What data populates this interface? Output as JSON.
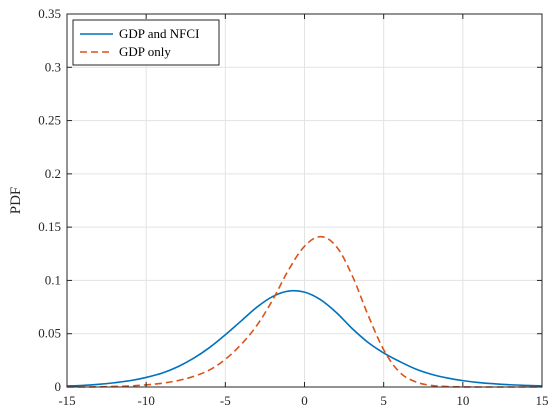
{
  "chart_data": {
    "type": "line",
    "title": "",
    "xlabel": "",
    "ylabel": "PDF",
    "xlim": [
      -15,
      15
    ],
    "ylim": [
      0,
      0.35
    ],
    "xticks": [
      -15,
      -10,
      -5,
      0,
      5,
      10,
      15
    ],
    "xtick_labels": [
      "-15",
      "-10",
      "-5",
      "0",
      "5",
      "10",
      "15"
    ],
    "yticks": [
      0,
      0.05,
      0.1,
      0.15,
      0.2,
      0.25,
      0.3,
      0.35
    ],
    "ytick_labels": [
      "0",
      "0.05",
      "0.1",
      "0.15",
      "0.2",
      "0.25",
      "0.3",
      "0.35"
    ],
    "grid": true,
    "legend_position": "top-left",
    "series": [
      {
        "name": "GDP and NFCI",
        "color": "#0072BD",
        "line_style": "solid",
        "x": [
          -15,
          -14,
          -13,
          -12,
          -11,
          -10,
          -9,
          -8,
          -7,
          -6,
          -5,
          -4,
          -3,
          -2,
          -1,
          0,
          1,
          2,
          3,
          4,
          5,
          6,
          7,
          8,
          9,
          10,
          11,
          12,
          13,
          14,
          15
        ],
        "y": [
          0.001,
          0.0015,
          0.0025,
          0.004,
          0.006,
          0.009,
          0.013,
          0.019,
          0.027,
          0.037,
          0.049,
          0.062,
          0.075,
          0.085,
          0.09,
          0.089,
          0.082,
          0.07,
          0.055,
          0.042,
          0.032,
          0.024,
          0.017,
          0.012,
          0.0085,
          0.006,
          0.0042,
          0.003,
          0.0021,
          0.0015,
          0.001
        ]
      },
      {
        "name": "GDP only",
        "color": "#D95319",
        "line_style": "dashed",
        "x": [
          -15,
          -14,
          -13,
          -12,
          -11,
          -10,
          -9,
          -8,
          -7,
          -6,
          -5,
          -4,
          -3,
          -2,
          -1,
          0,
          1,
          2,
          3,
          4,
          5,
          6,
          7,
          8,
          9,
          10,
          11,
          12,
          13,
          14,
          15
        ],
        "y": [
          0,
          0,
          0.0002,
          0.0005,
          0.001,
          0.002,
          0.0035,
          0.006,
          0.01,
          0.016,
          0.026,
          0.04,
          0.058,
          0.082,
          0.11,
          0.132,
          0.141,
          0.132,
          0.105,
          0.068,
          0.035,
          0.014,
          0.005,
          0.0015,
          0.0004,
          0.0001,
          0,
          0,
          0,
          0,
          0
        ]
      }
    ]
  }
}
